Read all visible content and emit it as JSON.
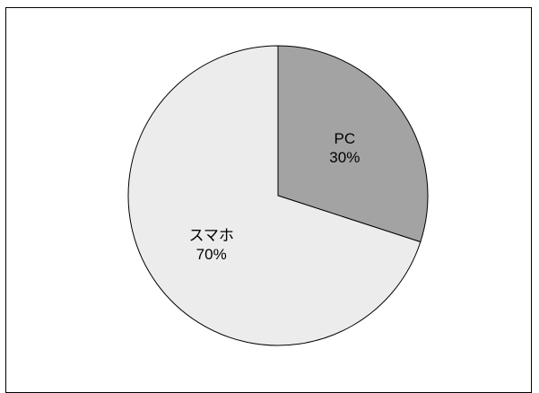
{
  "chart_data": {
    "type": "pie",
    "title": "",
    "start": "top",
    "direction": "clockwise",
    "slices": [
      {
        "label": "PC",
        "value": 30,
        "value_text": "30%",
        "color": "#a3a3a3"
      },
      {
        "label": "スマホ",
        "value": 70,
        "value_text": "70%",
        "color": "#ececec"
      }
    ],
    "outline_color": "#000000"
  }
}
